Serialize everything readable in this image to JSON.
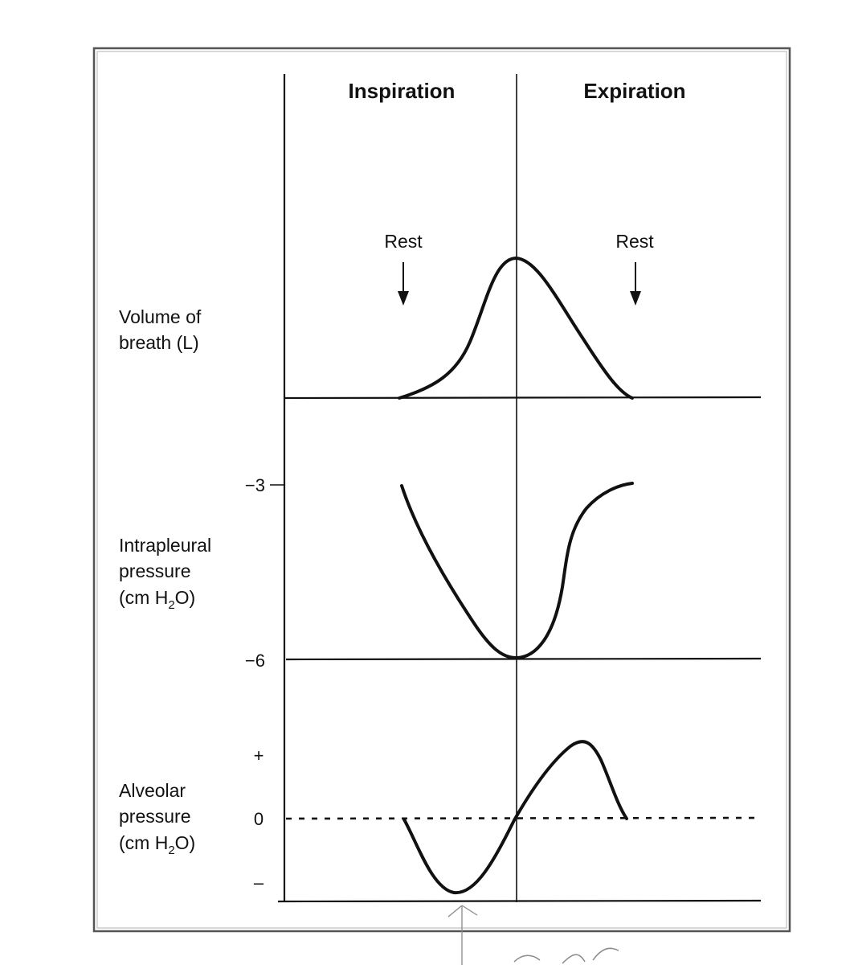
{
  "headers": {
    "inspiration": "Inspiration",
    "expiration": "Expiration"
  },
  "annotations": {
    "rest_left": "Rest",
    "rest_right": "Rest"
  },
  "panels": {
    "volume": {
      "label_line1": "Volume of",
      "label_line2": "breath (L)"
    },
    "intrapleural": {
      "label_line1": "Intrapleural",
      "label_line2": "pressure",
      "label_line3_pre": "(cm H",
      "label_line3_sub": "2",
      "label_line3_post": "O)",
      "tick_top": "−3",
      "tick_bottom": "−6"
    },
    "alveolar": {
      "label_line1": "Alveolar",
      "label_line2": "pressure",
      "label_line3_pre": "(cm H",
      "label_line3_sub": "2",
      "label_line3_post": "O)",
      "tick_plus": "+",
      "tick_zero": "0",
      "tick_minus": "–"
    }
  },
  "colors": {
    "ink": "#111111",
    "frame": "#555555",
    "pencil": "#8a8a8a"
  }
}
